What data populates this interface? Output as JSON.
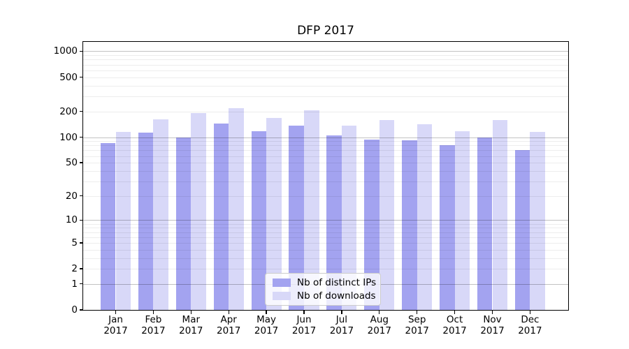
{
  "chart_data": {
    "type": "bar",
    "title": "DFP 2017",
    "categories": [
      {
        "month": "Jan",
        "year": "2017"
      },
      {
        "month": "Feb",
        "year": "2017"
      },
      {
        "month": "Mar",
        "year": "2017"
      },
      {
        "month": "Apr",
        "year": "2017"
      },
      {
        "month": "May",
        "year": "2017"
      },
      {
        "month": "Jun",
        "year": "2017"
      },
      {
        "month": "Jul",
        "year": "2017"
      },
      {
        "month": "Aug",
        "year": "2017"
      },
      {
        "month": "Sep",
        "year": "2017"
      },
      {
        "month": "Oct",
        "year": "2017"
      },
      {
        "month": "Nov",
        "year": "2017"
      },
      {
        "month": "Dec",
        "year": "2017"
      }
    ],
    "series": [
      {
        "name": "Nb of distinct IPs",
        "key": "distinct-ips",
        "color": "#a3a3f0",
        "values": [
          85,
          112,
          100,
          145,
          117,
          136,
          104,
          94,
          92,
          80,
          100,
          70
        ]
      },
      {
        "name": "Nb of downloads",
        "key": "downloads",
        "color": "#d8d8f8",
        "values": [
          115,
          163,
          190,
          220,
          168,
          205,
          137,
          158,
          141,
          117,
          160,
          116
        ]
      }
    ],
    "yticks": [
      1000,
      500,
      200,
      100,
      50,
      20,
      10,
      5,
      2,
      1,
      0
    ],
    "ylim": [
      0,
      1310
    ],
    "yscale": "log10(value+1)",
    "grid": "major and minor horizontal gridlines, drawn over bars",
    "legend_position": "inside lower-center",
    "xlabel": "",
    "ylabel": ""
  },
  "colors": {
    "axis": "#000000",
    "text": "#000000",
    "major_grid": "rgba(0,0,0,0.24)",
    "minor_grid": "rgba(0,0,0,0.07)",
    "legend_border": "#cccccc",
    "legend_bg": "rgba(255,255,255,0.8)",
    "background": "#ffffff"
  }
}
